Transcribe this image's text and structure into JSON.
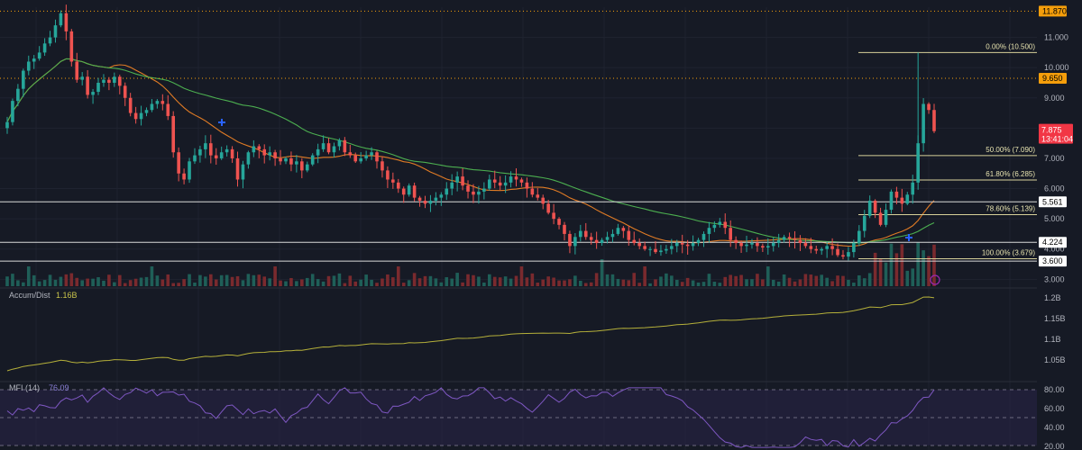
{
  "chart_data": {
    "type": "candlestick",
    "price_axis": {
      "ticks": [
        "11.000",
        "10.000",
        "9.000",
        "8.000",
        "7.000",
        "6.000",
        "5.000",
        "4.000",
        "3.000"
      ],
      "ylim": [
        2.95,
        12.0
      ]
    },
    "price_tags": [
      {
        "label": "11.870",
        "value": 11.87,
        "color": "#f59e0b",
        "text_color": "#000000"
      },
      {
        "label": "9.650",
        "value": 9.65,
        "color": "#f59e0b",
        "text_color": "#000000"
      },
      {
        "label": "5.561",
        "value": 5.561,
        "color": "#ffffff",
        "text_color": "#000000"
      },
      {
        "label": "4.224",
        "value": 4.224,
        "color": "#ffffff",
        "text_color": "#000000"
      },
      {
        "label": "3.600",
        "value": 3.6,
        "color": "#ffffff",
        "text_color": "#000000"
      }
    ],
    "current_price": {
      "label": "7.875",
      "countdown": "13:41:04",
      "value": 7.875,
      "color": "#f23645"
    },
    "horizontal_lines": [
      {
        "value": 11.87,
        "style": "dotted",
        "color": "#f59e0b"
      },
      {
        "value": 9.65,
        "style": "dotted",
        "color": "#f59e0b"
      },
      {
        "value": 5.561,
        "style": "solid",
        "color": "#d9d9d9"
      },
      {
        "value": 4.224,
        "style": "solid",
        "color": "#d9d9d9"
      },
      {
        "value": 3.6,
        "style": "solid",
        "color": "#d9d9d9"
      }
    ],
    "fib_levels": [
      {
        "label": "0.00% (10.500)",
        "value": 10.5
      },
      {
        "label": "50.00% (7.090)",
        "value": 7.09
      },
      {
        "label": "61.80% (6.285)",
        "value": 6.285
      },
      {
        "label": "78.60% (5.139)",
        "value": 5.139
      },
      {
        "label": "100.00% (3.679)",
        "value": 3.679
      }
    ],
    "candles_close": [
      8.2,
      8.9,
      9.3,
      9.9,
      10.2,
      10.3,
      10.5,
      10.8,
      11.0,
      11.4,
      11.8,
      11.2,
      10.2,
      9.6,
      9.7,
      9.1,
      9.2,
      9.5,
      9.6,
      9.5,
      9.7,
      9.4,
      9.0,
      8.5,
      8.3,
      8.5,
      8.6,
      8.8,
      8.9,
      8.8,
      8.4,
      7.2,
      6.5,
      6.3,
      6.9,
      7.1,
      7.3,
      7.5,
      7.1,
      7.0,
      7.2,
      7.3,
      7.0,
      6.3,
      6.8,
      7.2,
      7.4,
      7.3,
      7.1,
      7.2,
      7.0,
      6.9,
      7.0,
      6.8,
      6.9,
      6.6,
      6.8,
      7.1,
      7.3,
      7.5,
      7.2,
      7.4,
      7.6,
      7.2,
      7.1,
      6.9,
      7.0,
      7.1,
      7.2,
      6.9,
      6.6,
      6.3,
      6.2,
      6.0,
      5.8,
      6.1,
      5.7,
      5.6,
      5.5,
      5.6,
      5.7,
      5.8,
      6.0,
      6.2,
      6.4,
      6.1,
      5.9,
      5.8,
      5.9,
      6.0,
      6.3,
      6.2,
      6.1,
      6.2,
      6.4,
      6.3,
      6.2,
      6.0,
      5.8,
      5.7,
      5.5,
      5.2,
      5.0,
      4.8,
      4.5,
      4.1,
      4.4,
      4.6,
      4.4,
      4.3,
      4.2,
      4.3,
      4.4,
      4.5,
      4.7,
      4.6,
      4.3,
      4.2,
      4.1,
      4.0,
      4.0,
      3.9,
      3.95,
      4.0,
      4.1,
      4.2,
      4.15,
      4.1,
      4.2,
      4.3,
      4.5,
      4.7,
      4.8,
      4.9,
      4.7,
      4.3,
      4.2,
      4.1,
      4.15,
      4.2,
      4.1,
      4.05,
      4.1,
      4.2,
      4.3,
      4.4,
      4.35,
      4.3,
      4.2,
      4.1,
      4.0,
      3.95,
      4.0,
      4.1,
      4.0,
      3.8,
      3.75,
      3.9,
      4.2,
      4.6,
      5.1,
      5.6,
      5.2,
      4.8,
      5.3,
      5.9,
      5.7,
      5.5,
      5.8,
      6.2,
      7.5,
      8.8,
      8.6,
      7.9
    ],
    "volume_bars": 185,
    "indicators": [
      {
        "name": "Accum/Dist",
        "value": "1.16B",
        "axis_ticks": [
          "1.2B",
          "1.15B",
          "1.1B",
          "1.05B"
        ]
      },
      {
        "name": "MFI (14)",
        "value": "76.09",
        "axis_ticks": [
          "80.00",
          "60.00",
          "40.00",
          "20.00"
        ]
      }
    ],
    "moving_averages": [
      {
        "color": "#e07b25"
      },
      {
        "color": "#4caf50"
      }
    ]
  }
}
